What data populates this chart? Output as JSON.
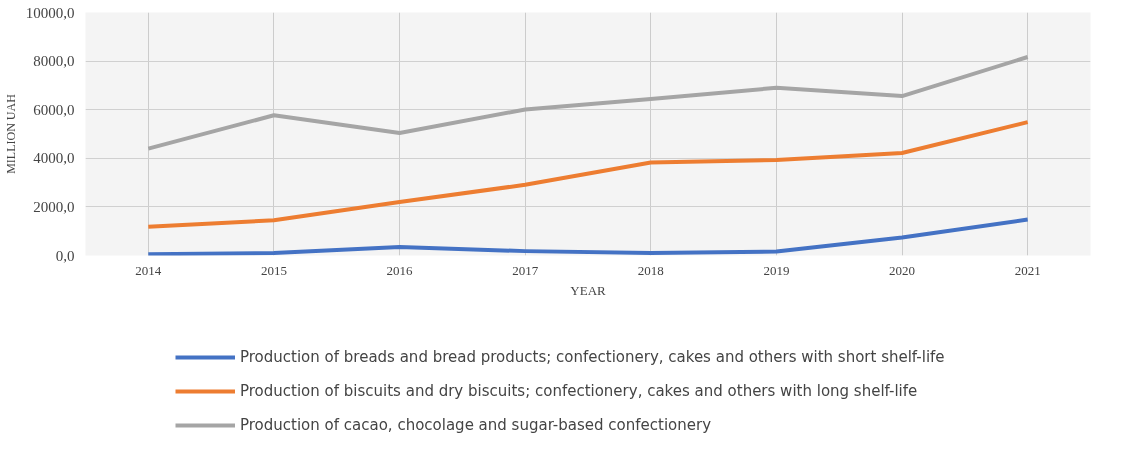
{
  "chart_data": {
    "type": "line",
    "xlabel": "YEAR",
    "ylabel": "MILLION UAH",
    "categories": [
      "2014",
      "2015",
      "2016",
      "2017",
      "2018",
      "2019",
      "2020",
      "2021"
    ],
    "series": [
      {
        "name": "Production of breads and bread products; confectionery, cakes and others with short shelf-life",
        "color": "#4472c4",
        "values": [
          50,
          100,
          350,
          180,
          100,
          160,
          740,
          1480
        ]
      },
      {
        "name": "Production of biscuits and dry biscuits; confectionery, cakes and others with long shelf-life",
        "color": "#ed7d31",
        "values": [
          1180,
          1450,
          2200,
          2910,
          3830,
          3930,
          4220,
          5490
        ]
      },
      {
        "name": "Production of cacao, chocolage and sugar-based confectionery",
        "color": "#a5a5a5",
        "values": [
          4400,
          5770,
          5040,
          6010,
          6440,
          6900,
          6560,
          8170
        ]
      }
    ],
    "ylim": [
      0,
      10000
    ],
    "yticks": [
      {
        "value": 0,
        "label": "0,0"
      },
      {
        "value": 2000,
        "label": "2000,0"
      },
      {
        "value": 4000,
        "label": "4000,0"
      },
      {
        "value": 6000,
        "label": "6000,0"
      },
      {
        "value": 8000,
        "label": "8000,0"
      },
      {
        "value": 10000,
        "label": "10000,0"
      }
    ],
    "grid": true,
    "legend": "bottom",
    "marker": "none",
    "line_style": "solid"
  }
}
